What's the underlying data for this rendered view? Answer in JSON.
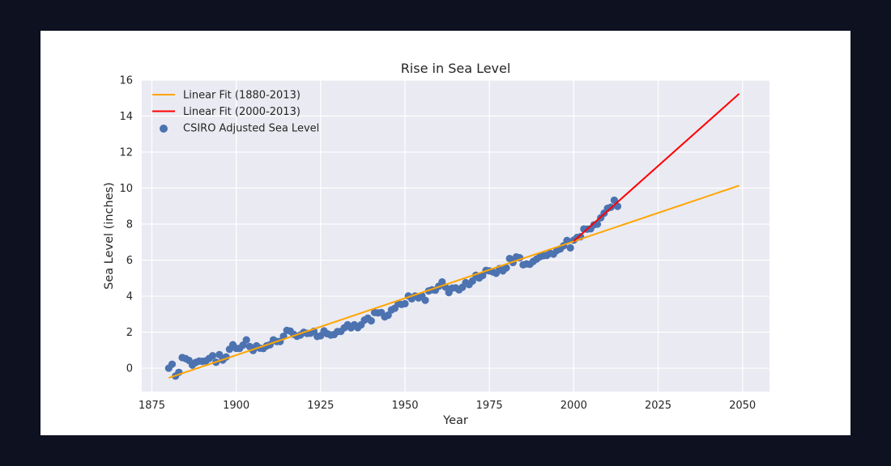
{
  "chart_data": {
    "type": "scatter",
    "title": "Rise in Sea Level",
    "xlabel": "Year",
    "ylabel": "Sea Level (inches)",
    "xlim": [
      1872,
      2058
    ],
    "ylim": [
      -1.3,
      16
    ],
    "xticks": [
      1875,
      1900,
      1925,
      1950,
      1975,
      2000,
      2025,
      2050
    ],
    "yticks": [
      0,
      2,
      4,
      6,
      8,
      10,
      12,
      14,
      16
    ],
    "grid": true,
    "legend_position": "top-left",
    "colors": {
      "background": "#eaeaf2",
      "grid": "#ffffff",
      "scatter": "#4c72b0",
      "fit_full": "#ffa500",
      "fit_recent": "#ff0000",
      "text": "#262626"
    },
    "series": [
      {
        "name": "Linear Fit (1880-2013)",
        "kind": "line",
        "color_key": "fit_full",
        "x": [
          1880,
          2049
        ],
        "y": [
          -0.54,
          10.14
        ]
      },
      {
        "name": "Linear Fit (2000-2013)",
        "kind": "line",
        "color_key": "fit_recent",
        "x": [
          2000,
          2049
        ],
        "y": [
          7.06,
          15.24
        ]
      },
      {
        "name": "CSIRO Adjusted Sea Level",
        "kind": "scatter",
        "color_key": "scatter",
        "x": [
          1880,
          1881,
          1882,
          1883,
          1884,
          1885,
          1886,
          1887,
          1888,
          1889,
          1890,
          1891,
          1892,
          1893,
          1894,
          1895,
          1896,
          1897,
          1898,
          1899,
          1900,
          1901,
          1902,
          1903,
          1904,
          1905,
          1906,
          1907,
          1908,
          1909,
          1910,
          1911,
          1912,
          1913,
          1914,
          1915,
          1916,
          1917,
          1918,
          1919,
          1920,
          1921,
          1922,
          1923,
          1924,
          1925,
          1926,
          1927,
          1928,
          1929,
          1930,
          1931,
          1932,
          1933,
          1934,
          1935,
          1936,
          1937,
          1938,
          1939,
          1940,
          1941,
          1942,
          1943,
          1944,
          1945,
          1946,
          1947,
          1948,
          1949,
          1950,
          1951,
          1952,
          1953,
          1954,
          1955,
          1956,
          1957,
          1958,
          1959,
          1960,
          1961,
          1962,
          1963,
          1964,
          1965,
          1966,
          1967,
          1968,
          1969,
          1970,
          1971,
          1972,
          1973,
          1974,
          1975,
          1976,
          1977,
          1978,
          1979,
          1980,
          1981,
          1982,
          1983,
          1984,
          1985,
          1986,
          1987,
          1988,
          1989,
          1990,
          1991,
          1992,
          1993,
          1994,
          1995,
          1996,
          1997,
          1998,
          1999,
          2000,
          2001,
          2002,
          2003,
          2004,
          2005,
          2006,
          2007,
          2008,
          2009,
          2010,
          2011,
          2012,
          2013
        ],
        "y": [
          0.0,
          0.22,
          -0.44,
          -0.23,
          0.59,
          0.53,
          0.43,
          0.17,
          0.32,
          0.39,
          0.38,
          0.41,
          0.54,
          0.69,
          0.33,
          0.75,
          0.45,
          0.62,
          1.05,
          1.3,
          1.1,
          1.1,
          1.28,
          1.57,
          1.2,
          0.98,
          1.24,
          1.11,
          1.09,
          1.24,
          1.3,
          1.57,
          1.48,
          1.48,
          1.77,
          2.1,
          2.06,
          1.88,
          1.77,
          1.84,
          1.99,
          1.93,
          1.94,
          2.05,
          1.76,
          1.8,
          2.07,
          1.91,
          1.84,
          1.87,
          2.03,
          2.04,
          2.24,
          2.41,
          2.24,
          2.41,
          2.25,
          2.41,
          2.67,
          2.78,
          2.63,
          3.09,
          3.07,
          3.09,
          2.85,
          2.94,
          3.24,
          3.33,
          3.58,
          3.54,
          3.58,
          4.01,
          3.85,
          4.01,
          3.9,
          4.02,
          3.77,
          4.29,
          4.35,
          4.33,
          4.55,
          4.79,
          4.5,
          4.2,
          4.45,
          4.46,
          4.35,
          4.49,
          4.75,
          4.64,
          4.84,
          5.16,
          5.01,
          5.15,
          5.43,
          5.4,
          5.35,
          5.27,
          5.53,
          5.4,
          5.57,
          6.09,
          5.87,
          6.18,
          6.13,
          5.74,
          5.79,
          5.77,
          5.93,
          6.06,
          6.19,
          6.25,
          6.26,
          6.38,
          6.34,
          6.54,
          6.62,
          6.8,
          7.09,
          6.68,
          7.11,
          7.26,
          7.3,
          7.73,
          7.72,
          7.74,
          7.96,
          8.0,
          8.35,
          8.61,
          8.88,
          8.94,
          9.33,
          8.99
        ]
      }
    ]
  }
}
